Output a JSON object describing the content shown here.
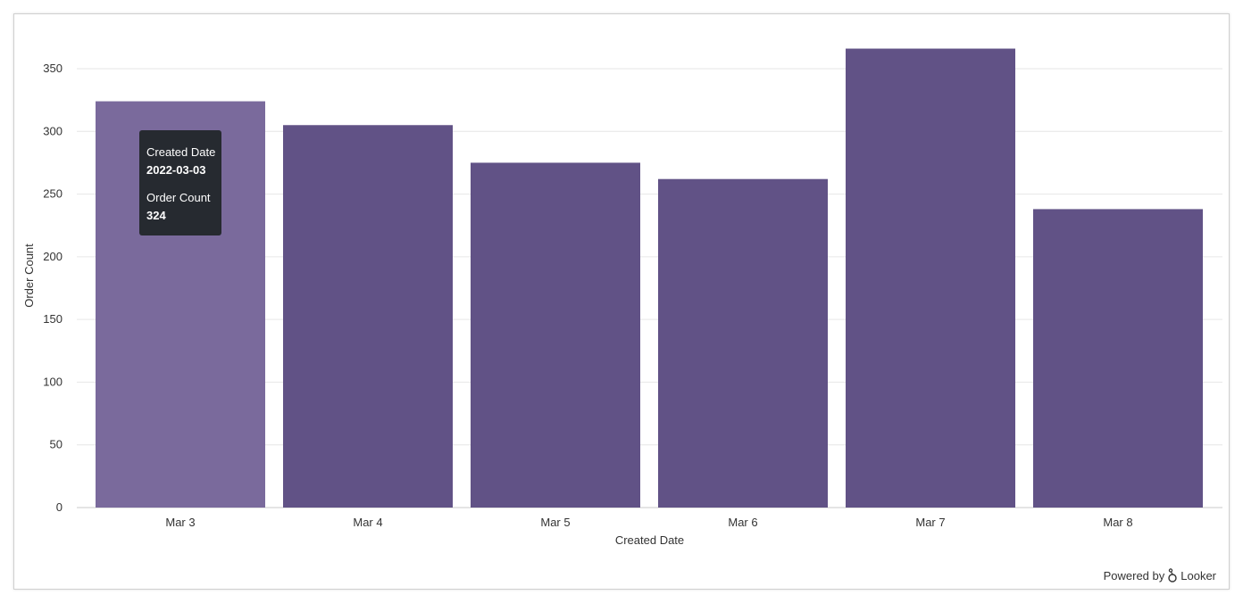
{
  "chart_data": {
    "type": "bar",
    "categories": [
      "Mar 3",
      "Mar 4",
      "Mar 5",
      "Mar 6",
      "Mar 7",
      "Mar 8"
    ],
    "values": [
      324,
      305,
      275,
      262,
      366,
      238
    ],
    "xlabel": "Created Date",
    "ylabel": "Order Count",
    "ylim": [
      0,
      350
    ],
    "yticks": [
      0,
      50,
      100,
      150,
      200,
      250,
      300,
      350
    ],
    "grid": true,
    "bar_color": "#615286",
    "highlight_color": "#7a6a9c",
    "highlighted_index": 0
  },
  "tooltip": {
    "label1": "Created Date",
    "value1": "2022-03-03",
    "label2": "Order Count",
    "value2": "324"
  },
  "footer": {
    "powered_by": "Powered by",
    "brand": "Looker"
  }
}
